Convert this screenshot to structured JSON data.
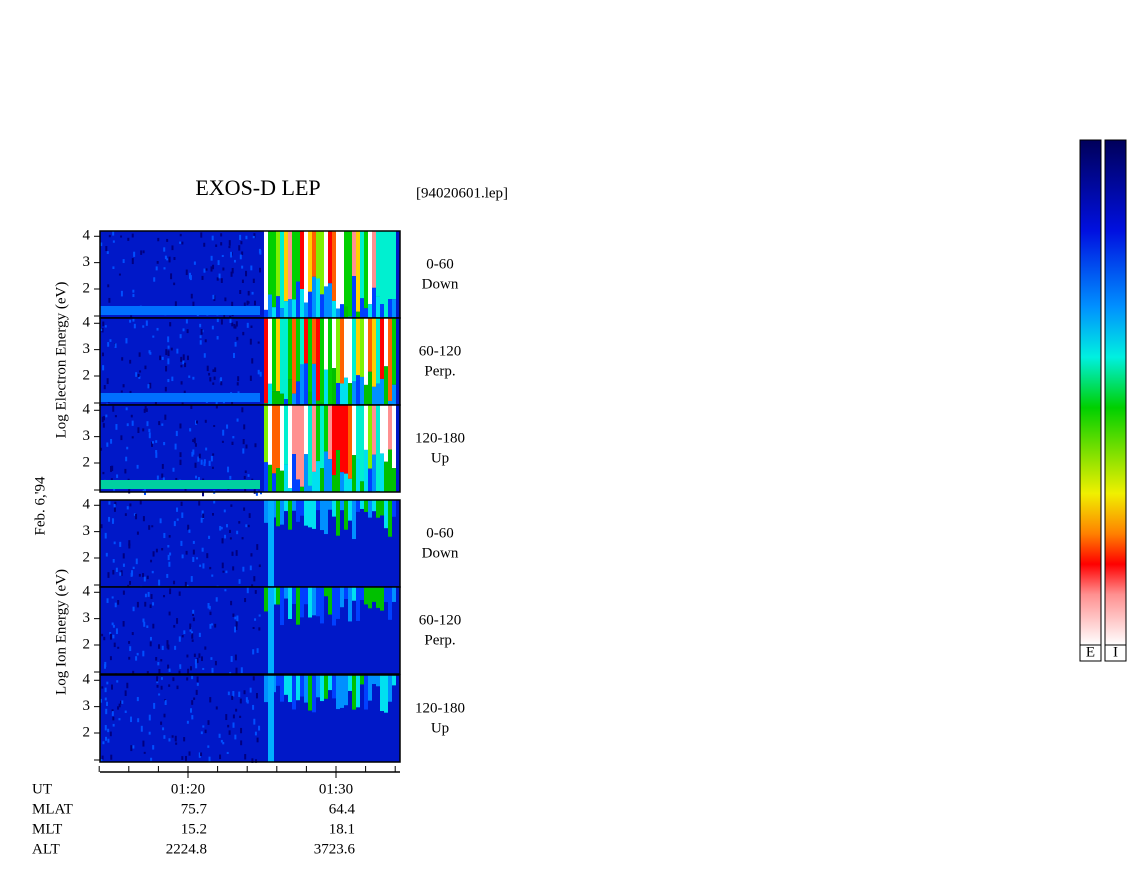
{
  "header": {
    "title": "EXOS-D LEP",
    "file": "[94020601.lep]"
  },
  "date": "Feb. 6,'94",
  "electron_axis_label": "Log  Electron  Energy (eV)",
  "ion_axis_label": "Log  Ion  Energy (eV)",
  "energy_axis": {
    "ylim": [
      0.9,
      4.2
    ],
    "yticks": [
      2,
      3,
      4
    ]
  },
  "panels": [
    {
      "pitch_angle": "0-60",
      "direction": "Down"
    },
    {
      "pitch_angle": "60-120",
      "direction": "Perp."
    },
    {
      "pitch_angle": "120-180",
      "direction": "Up"
    },
    {
      "pitch_angle": "0-60",
      "direction": "Down"
    },
    {
      "pitch_angle": "60-120",
      "direction": "Perp."
    },
    {
      "pitch_angle": "120-180",
      "direction": "Up"
    }
  ],
  "ephemeris": {
    "labels": [
      "UT",
      "MLAT",
      "MLT",
      "ALT"
    ],
    "columns": [
      [
        "01:20",
        "75.7",
        "15.2",
        "2224.8"
      ],
      [
        "01:30",
        "64.4",
        "18.1",
        "3723.6"
      ]
    ]
  },
  "colorbars": [
    "E",
    "I"
  ]
}
